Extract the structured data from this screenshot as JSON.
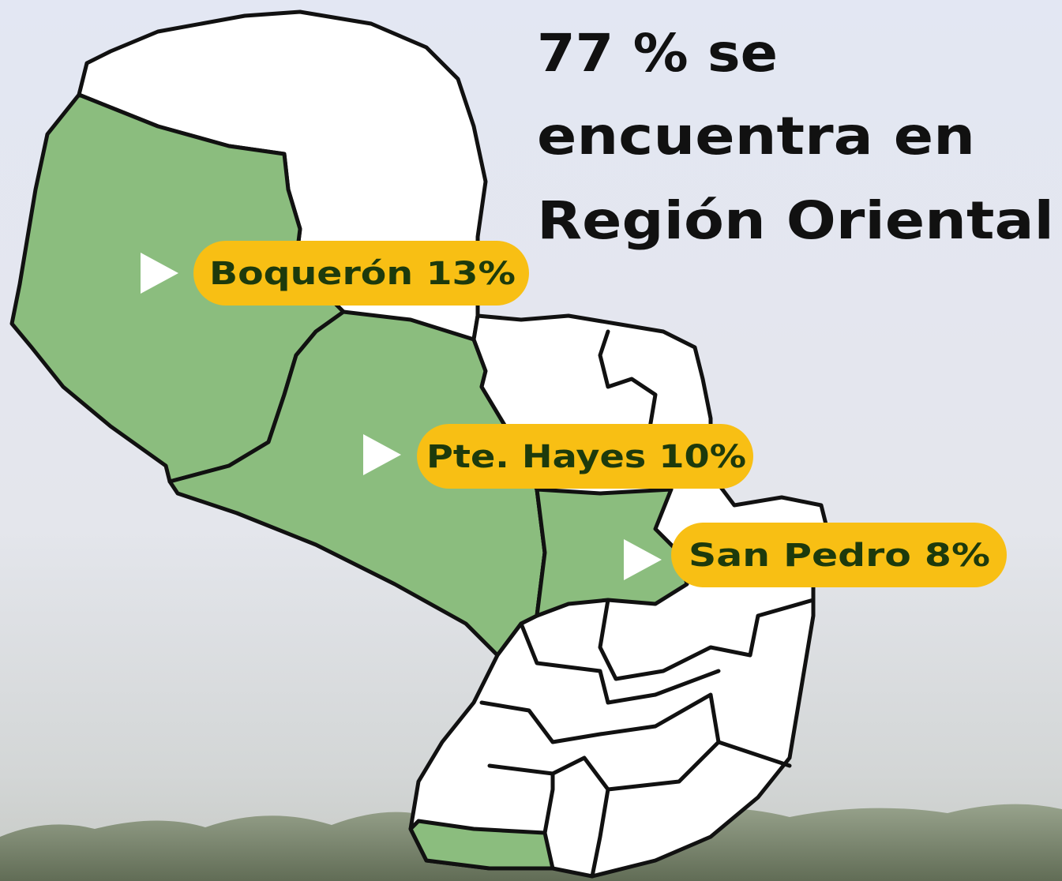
{
  "title_lines": [
    "77 % se",
    "encuentra en",
    "Región Oriental"
  ],
  "labels": [
    "Boquerón 13%",
    "Pte. Hayes 10%",
    "San Pedro 8%"
  ]
}
